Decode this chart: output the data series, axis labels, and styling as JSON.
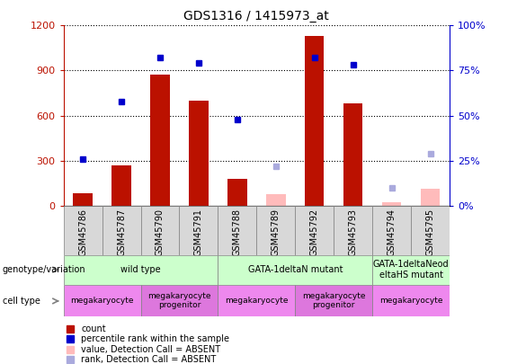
{
  "title": "GDS1316 / 1415973_at",
  "samples": [
    "GSM45786",
    "GSM45787",
    "GSM45790",
    "GSM45791",
    "GSM45788",
    "GSM45789",
    "GSM45792",
    "GSM45793",
    "GSM45794",
    "GSM45795"
  ],
  "count_values": [
    80,
    270,
    870,
    700,
    180,
    null,
    1130,
    680,
    null,
    null
  ],
  "count_absent": [
    null,
    null,
    null,
    null,
    null,
    75,
    null,
    null,
    25,
    115
  ],
  "rank_values": [
    26,
    58,
    82,
    79,
    48,
    null,
    82,
    78,
    null,
    null
  ],
  "rank_absent": [
    null,
    null,
    null,
    null,
    null,
    22,
    null,
    null,
    10,
    29
  ],
  "ylim_left": [
    0,
    1200
  ],
  "ylim_right": [
    0,
    100
  ],
  "yticks_left": [
    0,
    300,
    600,
    900,
    1200
  ],
  "yticks_right": [
    0,
    25,
    50,
    75,
    100
  ],
  "genotype_groups": [
    {
      "label": "wild type",
      "start": 0,
      "end": 4,
      "color": "#ccffcc"
    },
    {
      "label": "GATA-1deltaN mutant",
      "start": 4,
      "end": 8,
      "color": "#ccffcc"
    },
    {
      "label": "GATA-1deltaNeod\neltaHS mutant",
      "start": 8,
      "end": 10,
      "color": "#ccffcc"
    }
  ],
  "celltype_groups": [
    {
      "label": "megakaryocyte",
      "start": 0,
      "end": 2,
      "color": "#ee88ee"
    },
    {
      "label": "megakaryocyte\nprogenitor",
      "start": 2,
      "end": 4,
      "color": "#dd77dd"
    },
    {
      "label": "megakaryocyte",
      "start": 4,
      "end": 6,
      "color": "#ee88ee"
    },
    {
      "label": "megakaryocyte\nprogenitor",
      "start": 6,
      "end": 8,
      "color": "#dd77dd"
    },
    {
      "label": "megakaryocyte",
      "start": 8,
      "end": 10,
      "color": "#ee88ee"
    }
  ],
  "bar_color": "#bb1100",
  "bar_absent_color": "#ffbbbb",
  "rank_color": "#0000cc",
  "rank_absent_color": "#aaaadd",
  "legend_items": [
    {
      "label": "count",
      "color": "#bb1100"
    },
    {
      "label": "percentile rank within the sample",
      "color": "#0000cc"
    },
    {
      "label": "value, Detection Call = ABSENT",
      "color": "#ffbbbb"
    },
    {
      "label": "rank, Detection Call = ABSENT",
      "color": "#aaaadd"
    }
  ]
}
